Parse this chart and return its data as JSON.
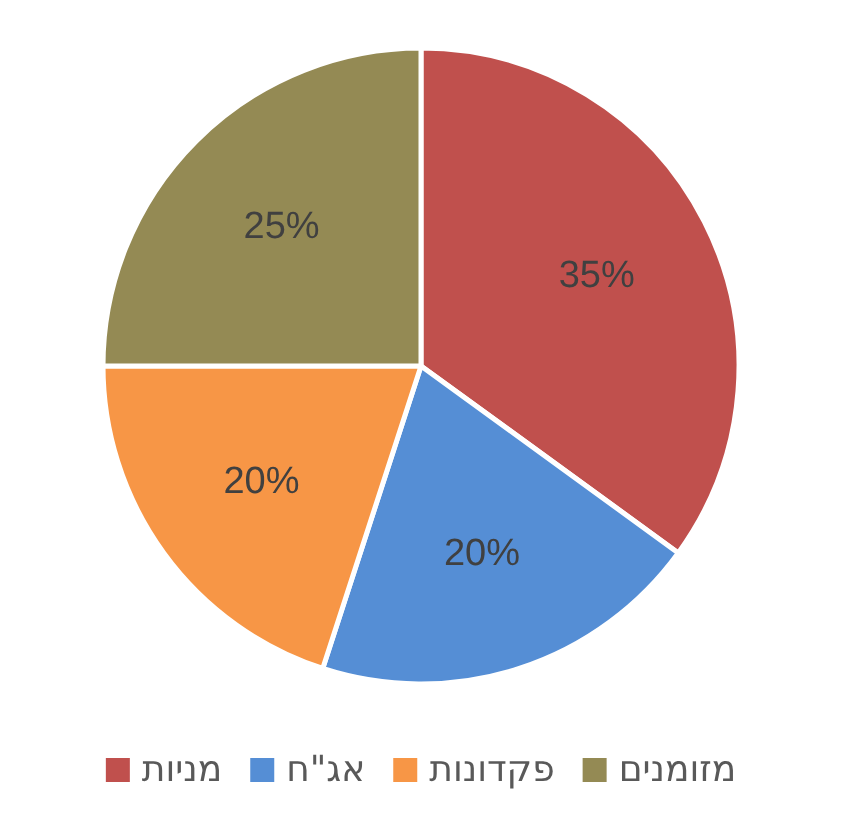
{
  "chart_data": {
    "type": "pie",
    "categories": [
      "מניות",
      "אג\"ח",
      "פקדונות",
      "מזומנים"
    ],
    "values": [
      35,
      20,
      20,
      25
    ],
    "value_labels": [
      "35%",
      "20%",
      "20%",
      "25%"
    ],
    "colors": [
      "#c0504d",
      "#558ed5",
      "#f79646",
      "#948a54"
    ],
    "legend": "bottom"
  }
}
